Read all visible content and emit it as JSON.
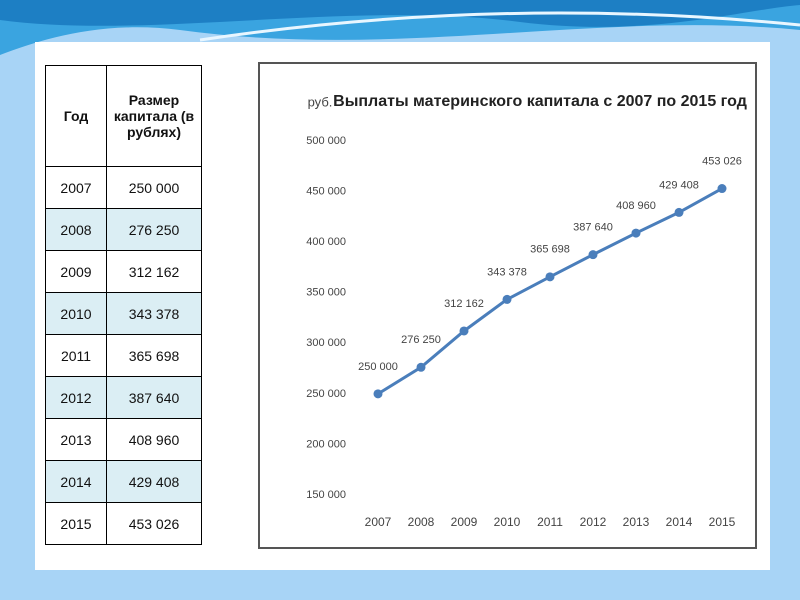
{
  "table": {
    "header": [
      "Год",
      "Размер капитала (в рублях)"
    ],
    "rows": [
      [
        "2007",
        "250 000"
      ],
      [
        "2008",
        "276 250"
      ],
      [
        "2009",
        "312 162"
      ],
      [
        "2010",
        "343 378"
      ],
      [
        "2011",
        "365 698"
      ],
      [
        "2012",
        "387 640"
      ],
      [
        "2013",
        "408 960"
      ],
      [
        "2014",
        "429 408"
      ],
      [
        "2015",
        "453 026"
      ]
    ]
  },
  "chart_data": {
    "type": "line",
    "title": "Выплаты материнского капитала с 2007 по 2015 год",
    "y_axis_label": "руб.",
    "categories": [
      "2007",
      "2008",
      "2009",
      "2010",
      "2011",
      "2012",
      "2013",
      "2014",
      "2015"
    ],
    "values": [
      250000,
      276250,
      312162,
      343378,
      365698,
      387640,
      408960,
      429408,
      453026
    ],
    "value_labels": [
      "250 000",
      "276 250",
      "312 162",
      "343 378",
      "365 698",
      "387 640",
      "408 960",
      "429 408",
      "453 026"
    ],
    "color": "#4a7ebb",
    "grid": false,
    "ylim": [
      150000,
      500000
    ],
    "yticks": [
      {
        "value": 150000,
        "label": "150 000"
      },
      {
        "value": 200000,
        "label": "200 000"
      },
      {
        "value": 250000,
        "label": "250 000"
      },
      {
        "value": 300000,
        "label": "300 000"
      },
      {
        "value": 350000,
        "label": "350 000"
      },
      {
        "value": 400000,
        "label": "400 000"
      },
      {
        "value": 450000,
        "label": "450 000"
      },
      {
        "value": 500000,
        "label": "500 000"
      }
    ]
  }
}
